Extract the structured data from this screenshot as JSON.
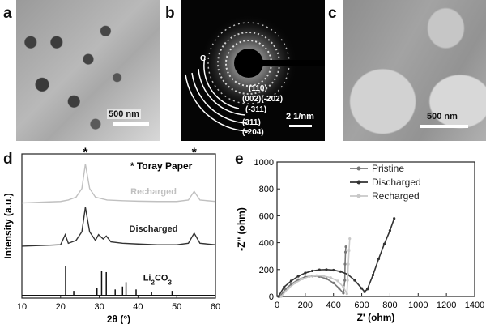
{
  "panels": {
    "a": {
      "label": "a",
      "scale_bar": "500 nm"
    },
    "b": {
      "label": "b",
      "scale_bar": "2 1/nm",
      "ring_marker": "C",
      "rings": [
        "(110)",
        "(002)(-202)",
        "(-311)",
        "(311)",
        "(-204)"
      ]
    },
    "c": {
      "label": "c",
      "scale_bar": "500 nm"
    },
    "d": {
      "label": "d"
    },
    "e": {
      "label": "e"
    }
  },
  "chart_data": [
    {
      "type": "line",
      "panel": "d",
      "xlabel": "2θ (°)",
      "ylabel": "Intensity (a.u.)",
      "xlim": [
        10,
        60
      ],
      "xticks": [
        10,
        20,
        30,
        40,
        50,
        60
      ],
      "annotation": "* Toray Paper",
      "peak_markers": [
        {
          "x": 26.4,
          "label": "*"
        },
        {
          "x": 54.5,
          "label": "*"
        }
      ],
      "series": [
        {
          "name": "Recharged",
          "color": "#c0c0c0",
          "x": [
            10,
            15,
            20,
            22,
            24,
            25.5,
            26.4,
            27.5,
            29,
            32,
            36,
            40,
            45,
            50,
            53,
            54.5,
            56,
            60
          ],
          "y": [
            0.66,
            0.665,
            0.67,
            0.68,
            0.7,
            0.76,
            0.93,
            0.76,
            0.7,
            0.68,
            0.675,
            0.672,
            0.67,
            0.67,
            0.68,
            0.74,
            0.68,
            0.67
          ]
        },
        {
          "name": "Discharged",
          "color": "#333333",
          "x": [
            10,
            15,
            20,
            21.2,
            22,
            24,
            25.5,
            26.4,
            27.5,
            29,
            29.8,
            31,
            31.8,
            33,
            36,
            40,
            45,
            50,
            53,
            54.5,
            56,
            60
          ],
          "y": [
            0.36,
            0.365,
            0.37,
            0.44,
            0.38,
            0.4,
            0.46,
            0.63,
            0.46,
            0.4,
            0.44,
            0.41,
            0.43,
            0.39,
            0.38,
            0.375,
            0.37,
            0.37,
            0.38,
            0.45,
            0.38,
            0.37
          ]
        },
        {
          "name": "Li2CO3",
          "color": "#111111",
          "bars_x": [
            21.3,
            23.4,
            29.4,
            30.6,
            31.8,
            34.1,
            36.0,
            36.9,
            39.5,
            43.5,
            48.8
          ],
          "bars_y": [
            1.0,
            0.15,
            0.25,
            0.85,
            0.8,
            0.2,
            0.3,
            0.45,
            0.2,
            0.1,
            0.15
          ]
        }
      ]
    },
    {
      "type": "line",
      "panel": "e",
      "xlabel": "Z' (ohm)",
      "ylabel": "-Z'' (ohm)",
      "xlim": [
        0,
        1400
      ],
      "ylim": [
        0,
        1000
      ],
      "xticks": [
        0,
        200,
        400,
        600,
        800,
        1000,
        1200,
        1400
      ],
      "yticks": [
        0,
        200,
        400,
        600,
        800,
        1000
      ],
      "legend": "top-left",
      "series": [
        {
          "name": "Pristine",
          "color": "#777777",
          "x": [
            20,
            60,
            100,
            150,
            200,
            250,
            300,
            350,
            400,
            440,
            470,
            480,
            482,
            485,
            488
          ],
          "y": [
            0,
            55,
            90,
            125,
            145,
            152,
            148,
            132,
            100,
            60,
            25,
            120,
            240,
            330,
            370
          ]
        },
        {
          "name": "Discharged",
          "color": "#333333",
          "x": [
            10,
            50,
            100,
            150,
            200,
            250,
            300,
            350,
            400,
            450,
            500,
            550,
            600,
            620,
            640,
            680,
            720,
            760,
            800,
            830
          ],
          "y": [
            0,
            70,
            115,
            150,
            175,
            190,
            198,
            200,
            196,
            185,
            165,
            120,
            60,
            35,
            55,
            160,
            280,
            390,
            490,
            580
          ]
        },
        {
          "name": "Recharged",
          "color": "#c8c8c8",
          "x": [
            30,
            80,
            130,
            180,
            230,
            280,
            330,
            380,
            430,
            470,
            495,
            500,
            505,
            510,
            515
          ],
          "y": [
            0,
            60,
            100,
            130,
            148,
            155,
            152,
            140,
            115,
            70,
            20,
            120,
            240,
            340,
            430
          ]
        }
      ]
    }
  ]
}
